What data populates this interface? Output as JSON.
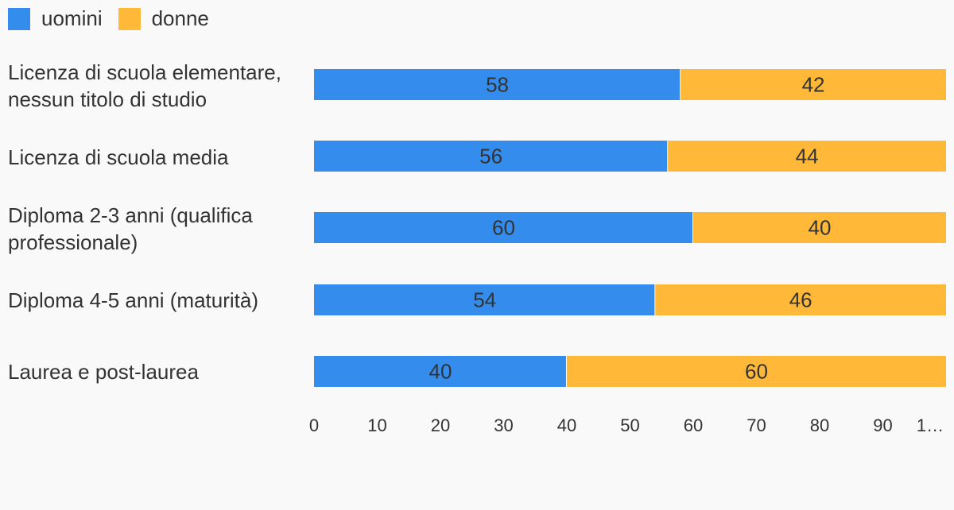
{
  "chart_data": {
    "type": "bar",
    "orientation": "horizontal",
    "stacked": true,
    "categories": [
      "Licenza di scuola elementare, nessun titolo di studio",
      "Licenza di scuola media",
      "Diploma 2-3 anni (qualifica professionale)",
      "Diploma 4-5 anni (maturità)",
      "Laurea e post-laurea"
    ],
    "series": [
      {
        "name": "uomini",
        "color": "#348ced",
        "values": [
          58,
          56,
          60,
          54,
          40
        ]
      },
      {
        "name": "donne",
        "color": "#ffb838",
        "values": [
          42,
          44,
          40,
          46,
          60
        ]
      }
    ],
    "xlim": [
      0,
      100
    ],
    "x_ticks": [
      "0",
      "10",
      "20",
      "30",
      "40",
      "50",
      "60",
      "70",
      "80",
      "90",
      "1…"
    ],
    "legend_position": "top-left",
    "grid": false
  }
}
